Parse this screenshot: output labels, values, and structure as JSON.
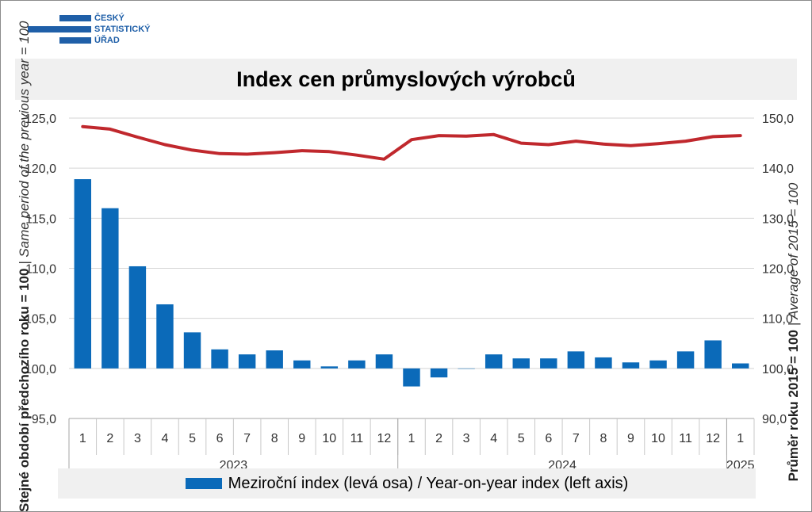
{
  "logo": {
    "lines": [
      "ČESKÝ",
      "STATISTICKÝ",
      "ÚŘAD"
    ],
    "color": "#1f5fa8"
  },
  "chart_data": {
    "type": "bar",
    "title": "Index cen průmyslových výrobců",
    "categories": [
      "1",
      "2",
      "3",
      "4",
      "5",
      "6",
      "7",
      "8",
      "9",
      "10",
      "11",
      "12",
      "1",
      "2",
      "3",
      "4",
      "5",
      "6",
      "7",
      "8",
      "9",
      "10",
      "11",
      "12",
      "1"
    ],
    "year_groups": [
      {
        "label": "2023",
        "count": 12
      },
      {
        "label": "2024",
        "count": 12
      },
      {
        "label": "2025",
        "count": 1
      }
    ],
    "series": [
      {
        "name": "Meziroční index (levá osa) / Year-on-year index (left axis)",
        "type": "bar",
        "axis": "left",
        "color": "#0b6ab9",
        "values": [
          118.9,
          116.0,
          110.2,
          106.4,
          103.6,
          101.9,
          101.4,
          101.8,
          100.8,
          100.2,
          100.8,
          101.4,
          98.2,
          99.1,
          100.0,
          101.4,
          101.0,
          101.0,
          101.7,
          101.1,
          100.6,
          100.8,
          101.7,
          102.8,
          100.5
        ]
      },
      {
        "type": "line",
        "axis": "right",
        "color": "#c0282d",
        "values": [
          148.3,
          147.8,
          146.2,
          144.7,
          143.6,
          142.9,
          142.8,
          143.1,
          143.5,
          143.3,
          142.6,
          141.8,
          145.7,
          146.5,
          146.4,
          146.7,
          145.0,
          144.7,
          145.4,
          144.8,
          144.5,
          144.9,
          145.4,
          146.3,
          146.5
        ]
      }
    ],
    "y_left": {
      "title_bold": "Stejné období předchozího roku = 100",
      "title_italic": " | Same period of the previous year = 100",
      "ylim": [
        95,
        125
      ],
      "ticks": [
        95,
        100,
        105,
        110,
        115,
        120,
        125
      ],
      "tick_labels": [
        "95,0",
        "100,0",
        "105,0",
        "110,0",
        "115,0",
        "120,0",
        "125,0"
      ]
    },
    "y_right": {
      "title_bold": "Průměr roku 2015 = 100",
      "title_italic": " | Average of 2015 = 100",
      "ylim": [
        90,
        150
      ],
      "ticks": [
        90,
        100,
        110,
        120,
        130,
        140,
        150
      ],
      "tick_labels": [
        "90,0",
        "100,0",
        "110,0",
        "120,0",
        "130,0",
        "140,0",
        "150,0"
      ]
    },
    "grid": true,
    "legend": {
      "position": "bottom",
      "label": "Meziroční index (levá osa) / Year-on-year index (left axis)"
    }
  }
}
